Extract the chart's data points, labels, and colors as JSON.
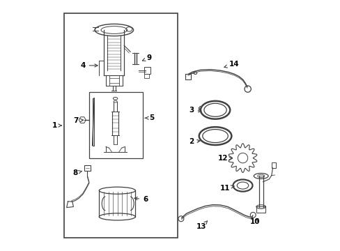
{
  "bg_color": "#ffffff",
  "line_color": "#404040",
  "label_color": "#000000",
  "figsize": [
    4.89,
    3.6
  ],
  "dpi": 100,
  "labels": {
    "1": [
      0.038,
      0.5,
      0.075,
      0.5
    ],
    "2": [
      0.585,
      0.435,
      0.63,
      0.44
    ],
    "3": [
      0.585,
      0.56,
      0.635,
      0.558
    ],
    "4": [
      0.15,
      0.74,
      0.22,
      0.74
    ],
    "5": [
      0.425,
      0.53,
      0.39,
      0.53
    ],
    "6": [
      0.4,
      0.205,
      0.345,
      0.21
    ],
    "7": [
      0.122,
      0.52,
      0.155,
      0.522
    ],
    "8": [
      0.118,
      0.31,
      0.148,
      0.318
    ],
    "9": [
      0.415,
      0.77,
      0.385,
      0.758
    ],
    "10": [
      0.84,
      0.115,
      0.86,
      0.135
    ],
    "11": [
      0.72,
      0.25,
      0.758,
      0.258
    ],
    "12": [
      0.71,
      0.37,
      0.75,
      0.368
    ],
    "13": [
      0.625,
      0.095,
      0.65,
      0.12
    ],
    "14": [
      0.755,
      0.745,
      0.705,
      0.73
    ]
  }
}
